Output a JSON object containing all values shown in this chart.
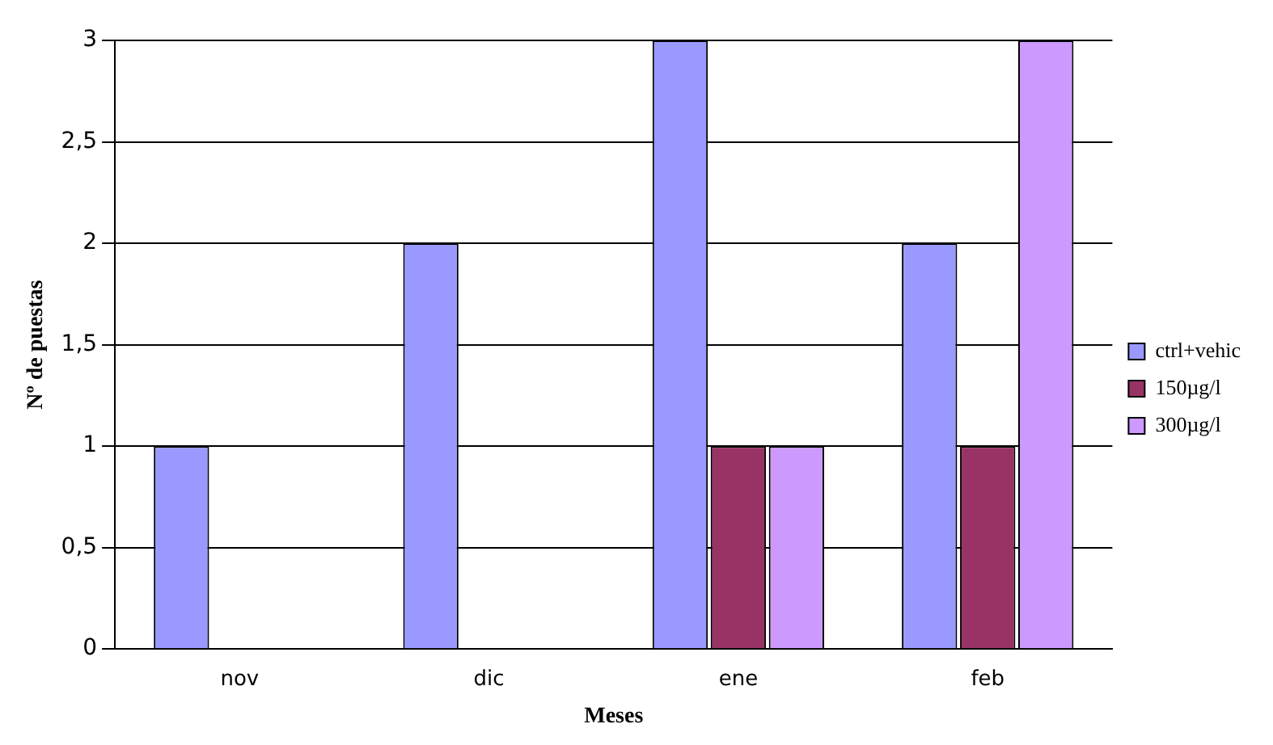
{
  "chart_data": {
    "type": "bar",
    "xlabel": "Meses",
    "ylabel": "Nº de puestas",
    "categories": [
      "nov",
      "dic",
      "ene",
      "feb"
    ],
    "series": [
      {
        "name": "ctrl+vehic",
        "color": "#9999ff",
        "values": [
          1,
          2,
          3,
          2
        ]
      },
      {
        "name": "150µg/l",
        "color": "#993366",
        "values": [
          0,
          0,
          1,
          1
        ]
      },
      {
        "name": "300µg/l",
        "color": "#cc99ff",
        "values": [
          0,
          0,
          1,
          3
        ]
      }
    ],
    "ylim": [
      0,
      3
    ],
    "yticks": [
      0,
      {
        "value": 0.5,
        "label": "0,5"
      },
      1,
      {
        "value": 1.5,
        "label": "1,5"
      },
      2,
      {
        "value": 2.5,
        "label": "2,5"
      },
      3
    ],
    "grid": "y",
    "legend": "right"
  }
}
